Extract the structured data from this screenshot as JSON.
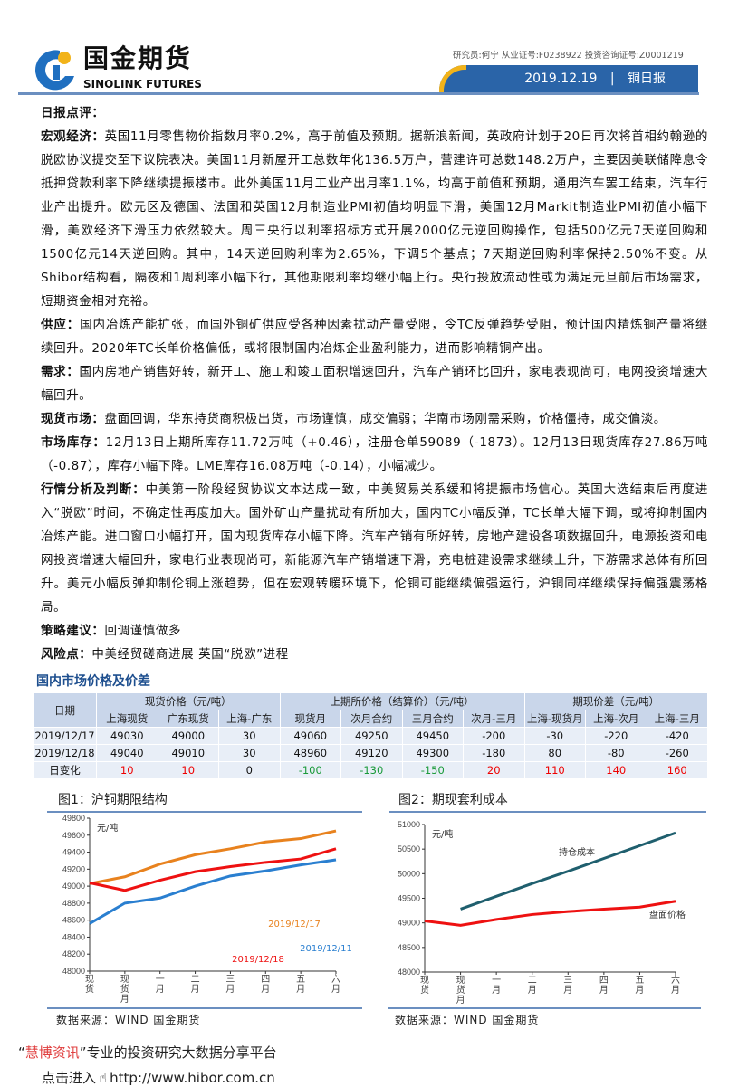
{
  "header": {
    "logo_cn": "国金期货",
    "logo_en": "SINOLINK FUTURES",
    "researcher": "研究员:何宁 从业证号:F0238922 投资咨询证号:Z0001219",
    "date": "2019.12.19",
    "separator": "|",
    "report_type": "铜日报"
  },
  "review_title": "日报点评：",
  "sections": [
    {
      "label": "宏观经济：",
      "text": "英国11月零售物价指数月率0.2%，高于前值及预期。据新浪新闻，英政府计划于20日再次将首相约翰逊的脱欧协议提交至下议院表决。美国11月新屋开工总数年化136.5万户，营建许可总数148.2万户，主要因美联储降息令抵押贷款利率下降继续提振楼市。此外美国11月工业产出月率1.1%，均高于前值和预期，通用汽车罢工结束，汽车行业产出提升。欧元区及德国、法国和英国12月制造业PMI初值均明显下滑，美国12月Markit制造业PMI初值小幅下滑，美欧经济下滑压力依然较大。周三央行以利率招标方式开展2000亿元逆回购操作，包括500亿元7天逆回购和1500亿元14天逆回购。其中，14天逆回购利率为2.65%，下调5个基点；7天期逆回购利率保持2.50%不变。从Shibor结构看，隔夜和1周利率小幅下行，其他期限利率均继小幅上行。央行投放流动性或为满足元旦前后市场需求，短期资金相对充裕。"
    },
    {
      "label": "供应：",
      "text": "国内冶炼产能扩张，而国外铜矿供应受各种因素扰动产量受限，令TC反弹趋势受阻，预计国内精炼铜产量将继续回升。2020年TC长单价格偏低，或将限制国内冶炼企业盈利能力，进而影响精铜产出。"
    },
    {
      "label": "需求：",
      "text": "国内房地产销售好转，新开工、施工和竣工面积增速回升，汽车产销环比回升，家电表现尚可，电网投资增速大幅回升。"
    },
    {
      "label": "现货市场：",
      "text": "盘面回调，华东持货商积极出货，市场谨慎，成交偏弱；华南市场刚需采购，价格僵持，成交偏淡。"
    },
    {
      "label": "市场库存：",
      "text": "12月13日上期所库存11.72万吨（+0.46），注册仓单59089（-1873）。12月13日现货库存27.86万吨（-0.87），库存小幅下降。LME库存16.08万吨（-0.14），小幅减少。"
    },
    {
      "label": "行情分析及判断：",
      "text": "中美第一阶段经贸协议文本达成一致，中美贸易关系缓和将提振市场信心。英国大选结束后再度进入“脱欧”时间，不确定性再度加大。国外矿山产量扰动有所加大，国内TC小幅反弹，TC长单大幅下调，或将抑制国内冶炼产能。进口窗口小幅打开，国内现货库存小幅下降。汽车产销有所好转，房地产建设各项数据回升，电源投资和电网投资增速大幅回升，家电行业表现尚可，新能源汽车产销增速下滑，充电桩建设需求继续上升，下游需求总体有所回升。美元小幅反弹抑制伦铜上涨趋势，但在宏观转暖环境下，伦铜可能继续偏强运行，沪铜同样继续保持偏强震荡格局。"
    },
    {
      "label": "策略建议：",
      "text": "回调谨慎做多"
    },
    {
      "label": "风险点：",
      "text": "中美经贸磋商进展 英国“脱欧”进程"
    }
  ],
  "table": {
    "title": "国内市场价格及价差",
    "date_header": "日期",
    "groups": [
      "现货价格（元/吨）",
      "上期所价格（结算价）（元/吨）",
      "期现价差（元/吨）"
    ],
    "columns": [
      "上海现货",
      "广东现货",
      "上海-广东",
      "现货月",
      "次月合约",
      "三月合约",
      "次月-三月",
      "上海-现货月",
      "上海-次月",
      "上海-三月"
    ],
    "rows": [
      {
        "date": "2019/12/17",
        "values": [
          "49030",
          "49000",
          "30",
          "49060",
          "49250",
          "49450",
          "-200",
          "-30",
          "-220",
          "-420"
        ]
      },
      {
        "date": "2019/12/18",
        "values": [
          "49040",
          "49010",
          "30",
          "48960",
          "49120",
          "49300",
          "-180",
          "80",
          "-80",
          "-260"
        ]
      },
      {
        "date": "日变化",
        "values": [
          "10",
          "10",
          "0",
          "-100",
          "-130",
          "-150",
          "20",
          "110",
          "140",
          "160"
        ]
      }
    ],
    "change_colors": {
      "up": "#ee0000",
      "down": "#1a9a3a"
    }
  },
  "chart_data": [
    {
      "type": "line",
      "title": "图1：沪铜期限结构",
      "unit": "元/吨",
      "categories": [
        "现货",
        "现货月",
        "一月",
        "二月",
        "三月",
        "四月",
        "五月",
        "六月"
      ],
      "ylim": [
        48000,
        49800
      ],
      "yticks": [
        48000,
        48200,
        48400,
        48600,
        48800,
        49000,
        49200,
        49400,
        49600,
        49800
      ],
      "grid": false,
      "series": [
        {
          "name": "2019/12/17",
          "color": "#e8821e",
          "values": [
            49030,
            49110,
            49260,
            49370,
            49440,
            49520,
            49560,
            49650
          ]
        },
        {
          "name": "2019/12/18",
          "color": "#ee1111",
          "values": [
            49040,
            48950,
            49070,
            49170,
            49230,
            49280,
            49320,
            49440
          ]
        },
        {
          "name": "2019/12/11",
          "color": "#2a7fd0",
          "values": [
            48560,
            48800,
            48860,
            49000,
            49120,
            49180,
            49250,
            49310
          ]
        }
      ],
      "source": "数据来源：WIND 国金期货"
    },
    {
      "type": "line",
      "title": "图2：期现套利成本",
      "unit": "元/吨",
      "categories": [
        "现货",
        "现货月",
        "一月",
        "二月",
        "三月",
        "四月",
        "五月",
        "六月"
      ],
      "ylim": [
        48000,
        51000
      ],
      "yticks": [
        48000,
        48500,
        49000,
        49500,
        50000,
        50500,
        51000
      ],
      "grid": false,
      "series": [
        {
          "name": "持仓成本",
          "color": "#1f5f6e",
          "values": [
            null,
            49280,
            49540,
            49800,
            50050,
            50310,
            50570,
            50830
          ]
        },
        {
          "name": "盘面价格",
          "color": "#ee1111",
          "values": [
            49040,
            48950,
            49070,
            49170,
            49230,
            49280,
            49320,
            49440
          ]
        }
      ],
      "source": "数据来源：WIND 国金期货"
    }
  ],
  "footer": {
    "quote_open": "“",
    "brand": "慧博资讯",
    "quote_close": "”",
    "slogan": "专业的投资研究大数据分享平台",
    "enter": "点击进入",
    "url": "http://www.hibor.com.cn"
  }
}
